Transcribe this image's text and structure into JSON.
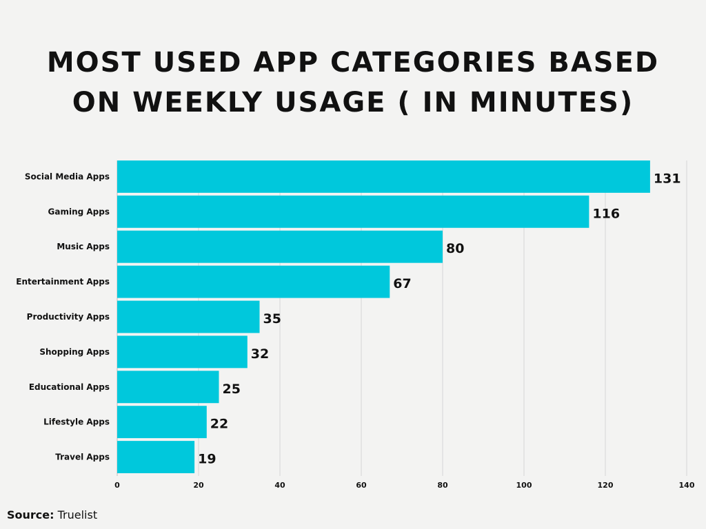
{
  "title_line1": "MOST USED APP CATEGORIES BASED",
  "title_line2": "ON WEEKLY USAGE ( IN MINUTES)",
  "source_label": "Source:",
  "source_value": "Truelist",
  "chart_data": {
    "type": "bar",
    "orientation": "horizontal",
    "title": "MOST USED APP CATEGORIES BASED ON WEEKLY USAGE ( IN MINUTES)",
    "categories": [
      "Social Media Apps",
      "Gaming Apps",
      "Music Apps",
      "Entertainment Apps",
      "Productivity Apps",
      "Shopping Apps",
      "Educational Apps",
      "Lifestyle Apps",
      "Travel Apps"
    ],
    "values": [
      131,
      116,
      80,
      67,
      35,
      32,
      25,
      22,
      19
    ],
    "xlim": [
      0,
      140
    ],
    "xticks": [
      0,
      20,
      40,
      60,
      80,
      100,
      120,
      140
    ],
    "grid": true,
    "bar_color": "#00c8dc",
    "data_labels": true
  }
}
